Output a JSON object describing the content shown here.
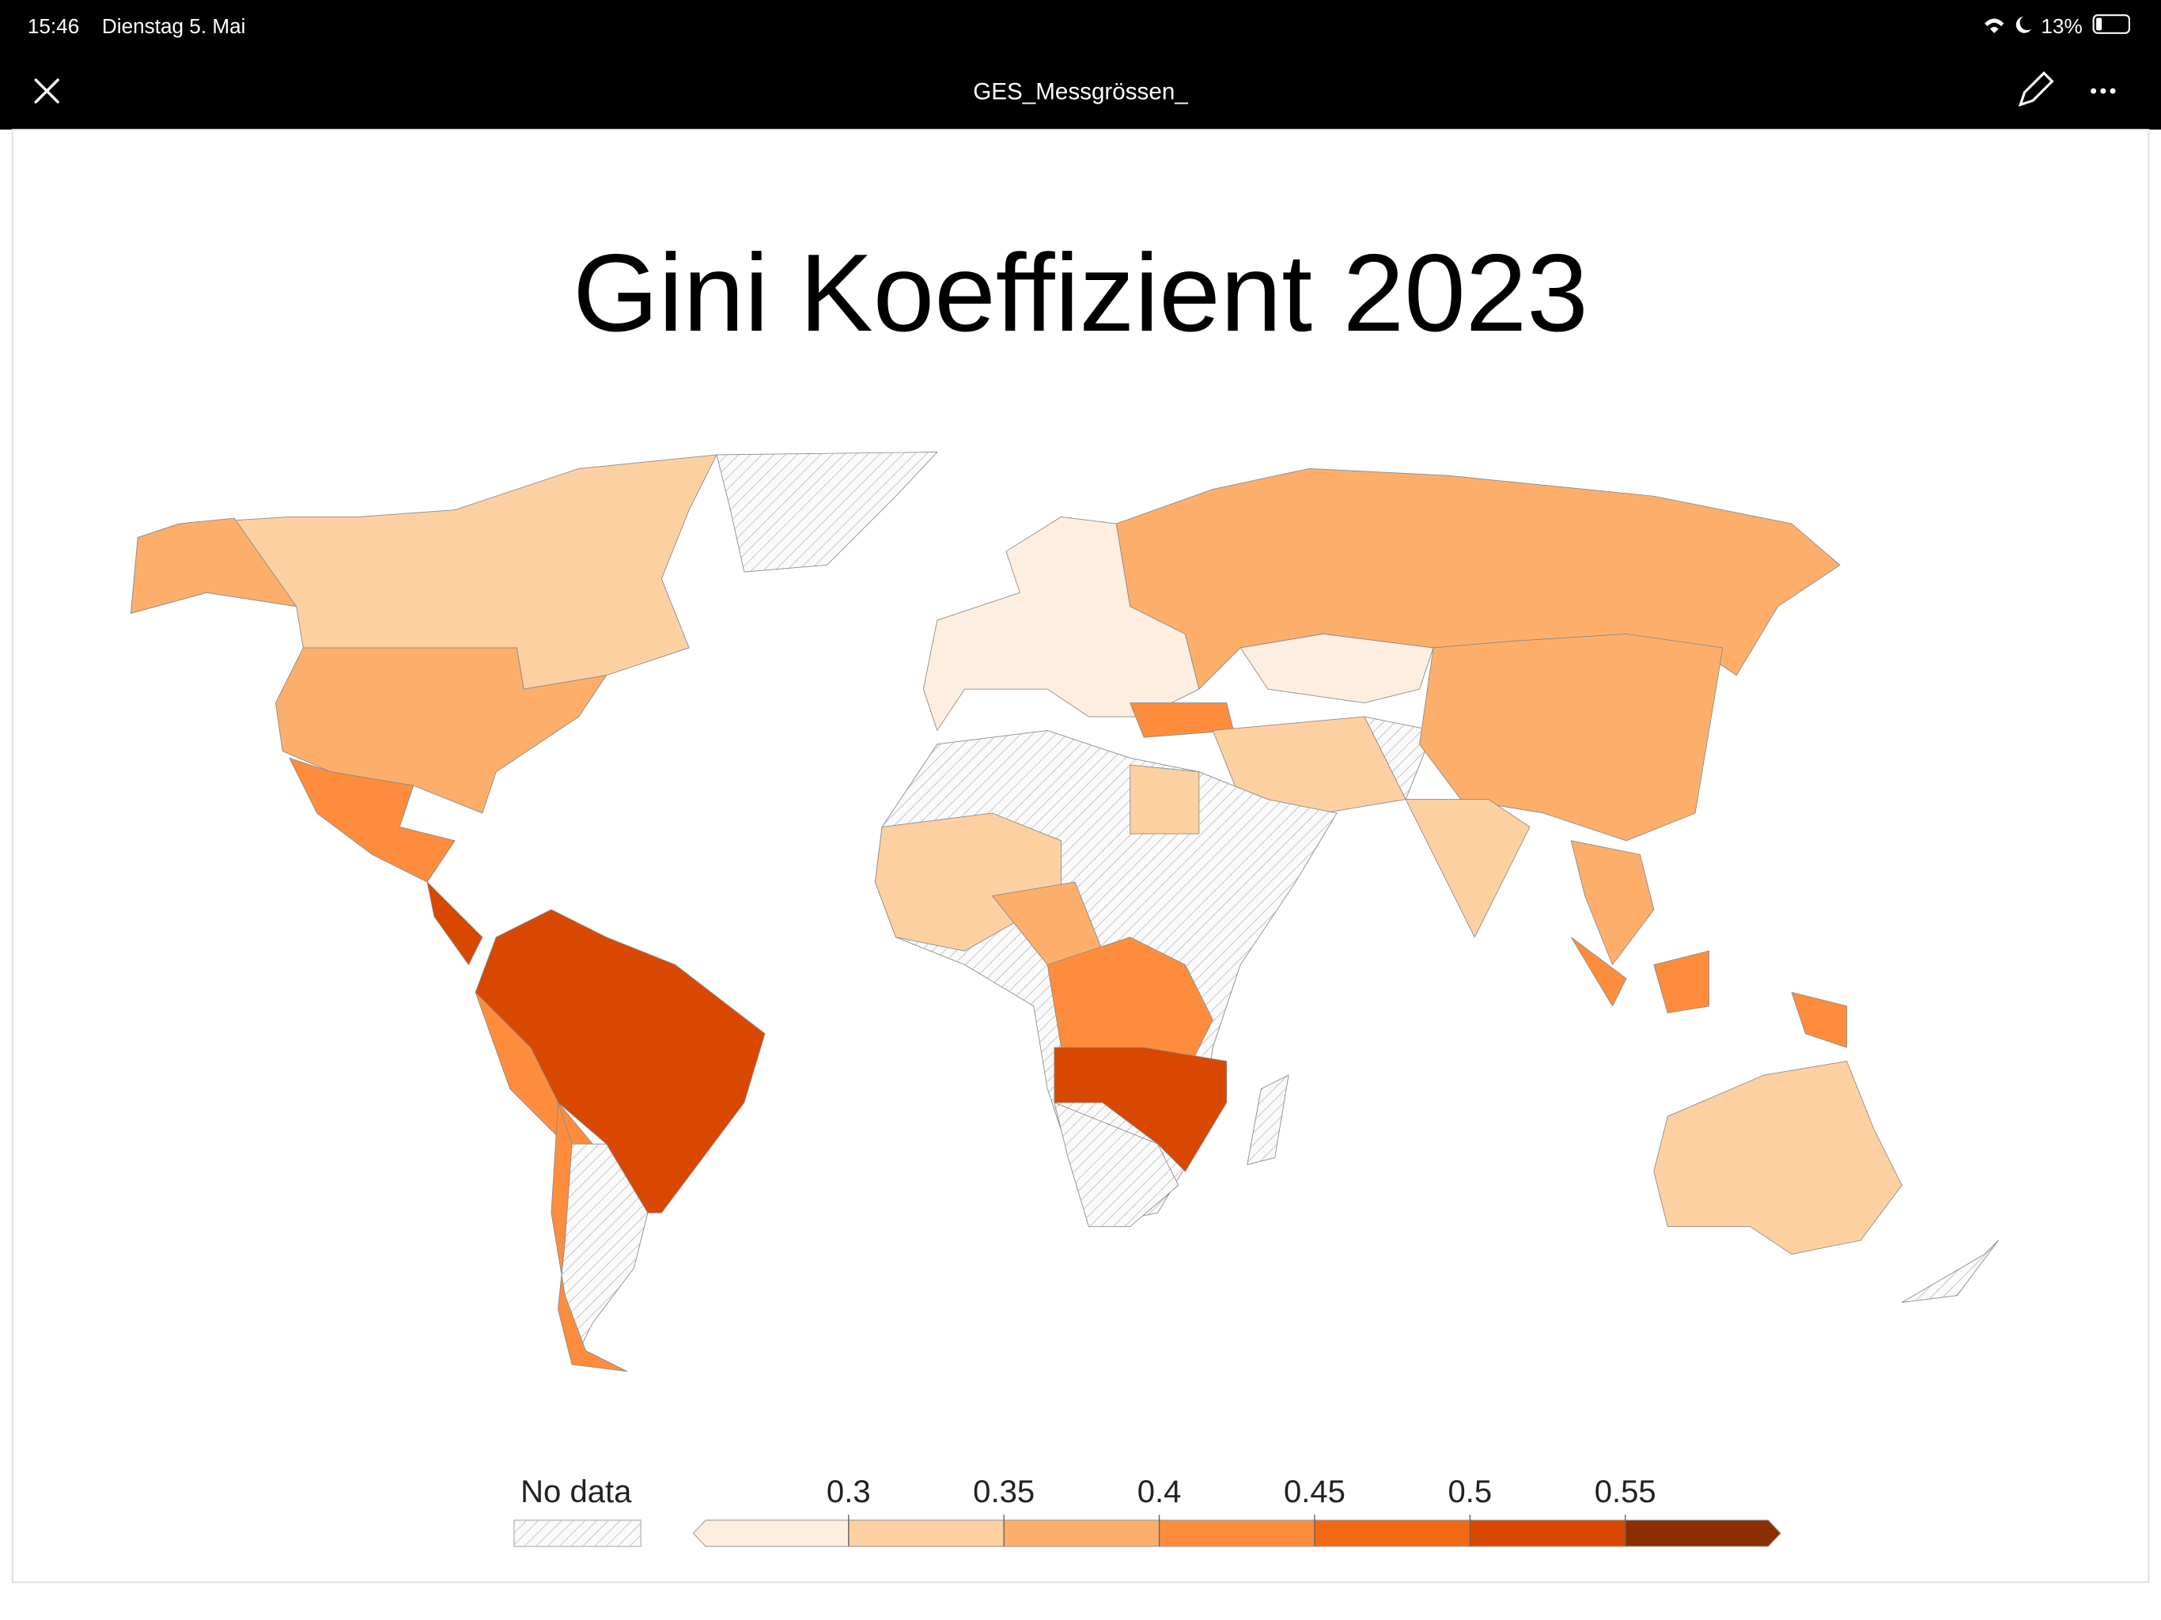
{
  "status_bar": {
    "time": "15:46",
    "date": "Dienstag 5. Mai",
    "battery": "13%"
  },
  "toolbar": {
    "title": "GES_Messgrössen_"
  },
  "slide": {
    "title": "Gini Koeffizient 2023"
  },
  "legend": {
    "no_data_label": "No data",
    "xlim": [
      0.25,
      0.6
    ],
    "xticks": [
      0.3,
      0.35,
      0.4,
      0.45,
      0.5,
      0.55
    ],
    "colors": [
      "#fdeee0",
      "#fdd0a2",
      "#fdae6b",
      "#fd8d3c",
      "#f16913",
      "#d94801",
      "#8c2d04"
    ]
  }
}
